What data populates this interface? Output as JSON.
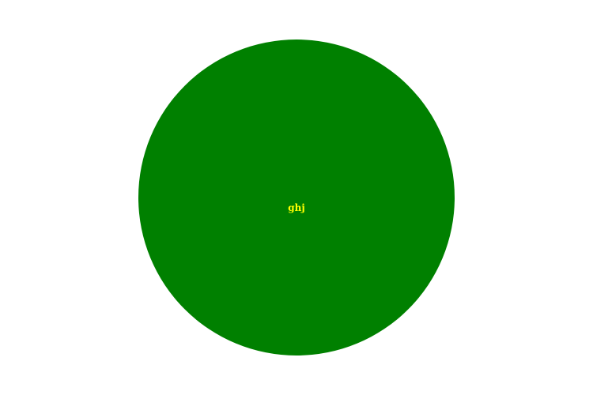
{
  "circle": {
    "label": "ghj",
    "fill_color": "#008000",
    "label_color": "#ffff00"
  },
  "background_color": "#ffffff"
}
